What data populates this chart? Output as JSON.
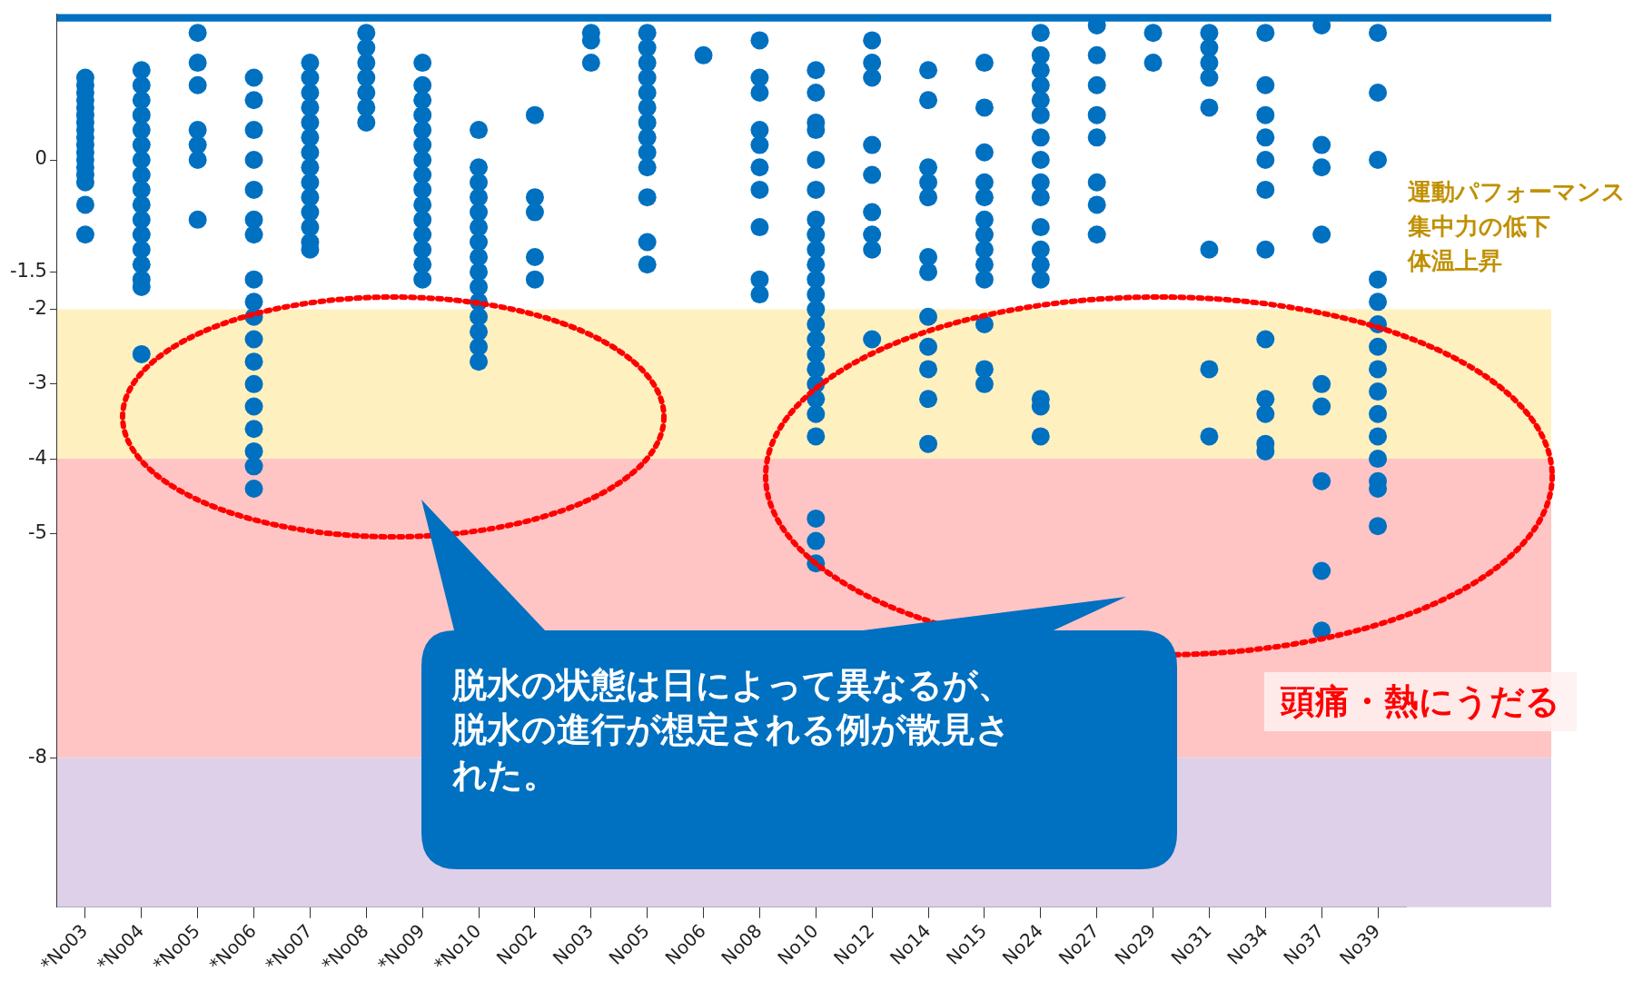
{
  "chart_data": {
    "type": "scatter",
    "categories": [
      "*No03",
      "*No04",
      "*No05",
      "*No06",
      "*No07",
      "*No08",
      "*No09",
      "*No10",
      "No02",
      "No03",
      "No05",
      "No06",
      "No08",
      "No10",
      "No12",
      "No14",
      "No15",
      "No24",
      "No27",
      "No29",
      "No31",
      "No34",
      "No37",
      "No39"
    ],
    "series": [
      {
        "color": "#0070c0",
        "x": [
          "*No03",
          "*No03",
          "*No03",
          "*No03",
          "*No03",
          "*No03",
          "*No03",
          "*No03",
          "*No03",
          "*No03",
          "*No03",
          "*No03",
          "*No03",
          "*No03",
          "*No03",
          "*No03",
          "*No03",
          "*No04",
          "*No04",
          "*No04",
          "*No04",
          "*No04",
          "*No04",
          "*No04",
          "*No04",
          "*No04",
          "*No04",
          "*No04",
          "*No04",
          "*No04",
          "*No04",
          "*No04",
          "*No04",
          "*No04",
          "*No05",
          "*No05",
          "*No05",
          "*No05",
          "*No05",
          "*No05",
          "*No05",
          "*No06",
          "*No06",
          "*No06",
          "*No06",
          "*No06",
          "*No06",
          "*No06",
          "*No06",
          "*No06",
          "*No06",
          "*No06",
          "*No06",
          "*No06",
          "*No06",
          "*No06",
          "*No06",
          "*No06",
          "*No06",
          "*No07",
          "*No07",
          "*No07",
          "*No07",
          "*No07",
          "*No07",
          "*No07",
          "*No07",
          "*No07",
          "*No07",
          "*No07",
          "*No07",
          "*No07",
          "*No07",
          "*No08",
          "*No08",
          "*No08",
          "*No08",
          "*No08",
          "*No08",
          "*No08",
          "*No09",
          "*No09",
          "*No09",
          "*No09",
          "*No09",
          "*No09",
          "*No09",
          "*No09",
          "*No09",
          "*No09",
          "*No09",
          "*No09",
          "*No09",
          "*No09",
          "*No09",
          "*No10",
          "*No10",
          "*No10",
          "*No10",
          "*No10",
          "*No10",
          "*No10",
          "*No10",
          "*No10",
          "*No10",
          "*No10",
          "*No10",
          "*No10",
          "*No10",
          "*No10",
          "No02",
          "No02",
          "No02",
          "No02",
          "No02",
          "No03",
          "No03",
          "No03",
          "No05",
          "No05",
          "No05",
          "No05",
          "No05",
          "No05",
          "No05",
          "No05",
          "No05",
          "No05",
          "No05",
          "No05",
          "No05",
          "No06",
          "No08",
          "No08",
          "No08",
          "No08",
          "No08",
          "No08",
          "No08",
          "No08",
          "No08",
          "No08",
          "No10",
          "No10",
          "No10",
          "No10",
          "No10",
          "No10",
          "No10",
          "No10",
          "No10",
          "No10",
          "No10",
          "No10",
          "No10",
          "No10",
          "No10",
          "No10",
          "No10",
          "No10",
          "No10",
          "No10",
          "No10",
          "No10",
          "No10",
          "No10",
          "No12",
          "No12",
          "No12",
          "No12",
          "No12",
          "No12",
          "No12",
          "No12",
          "No12",
          "No14",
          "No14",
          "No14",
          "No14",
          "No14",
          "No14",
          "No14",
          "No14",
          "No14",
          "No14",
          "No14",
          "No14",
          "No15",
          "No15",
          "No15",
          "No15",
          "No15",
          "No15",
          "No15",
          "No15",
          "No15",
          "No15",
          "No15",
          "No15",
          "No15",
          "No24",
          "No24",
          "No24",
          "No24",
          "No24",
          "No24",
          "No24",
          "No24",
          "No24",
          "No24",
          "No24",
          "No24",
          "No24",
          "No24",
          "No24",
          "No24",
          "No24",
          "No27",
          "No27",
          "No27",
          "No27",
          "No27",
          "No27",
          "No27",
          "No27",
          "No29",
          "No29",
          "No31",
          "No31",
          "No31",
          "No31",
          "No31",
          "No31",
          "No31",
          "No31",
          "No34",
          "No34",
          "No34",
          "No34",
          "No34",
          "No34",
          "No34",
          "No34",
          "No34",
          "No34",
          "No34",
          "No34",
          "No37",
          "No37",
          "No37",
          "No37",
          "No37",
          "No37",
          "No37",
          "No37",
          "No37",
          "No39",
          "No39",
          "No39",
          "No39",
          "No39",
          "No39",
          "No39",
          "No39",
          "No39",
          "No39",
          "No39",
          "No39",
          "No39",
          "No39",
          "No39"
        ],
        "values": [
          1.1,
          1.0,
          0.9,
          0.8,
          0.7,
          0.6,
          0.5,
          0.4,
          0.3,
          0.2,
          0.1,
          0,
          -0.1,
          -0.2,
          -0.3,
          -0.6,
          -1.0,
          1.2,
          1.0,
          0.8,
          0.6,
          0.4,
          0.2,
          0,
          -0.2,
          -0.4,
          -0.6,
          -0.8,
          -1.0,
          -1.2,
          -1.4,
          -1.6,
          -1.7,
          -2.6,
          1.7,
          1.3,
          1.0,
          0.4,
          0.2,
          0.0,
          -0.8,
          1.1,
          0.8,
          0.4,
          0,
          -0.4,
          -0.8,
          -1.0,
          -1.6,
          -1.9,
          -2.1,
          -2.4,
          -2.7,
          -3.0,
          -3.3,
          -3.6,
          -3.9,
          -4.1,
          -4.4,
          1.3,
          1.1,
          0.9,
          0.7,
          0.5,
          0.3,
          0.1,
          -0.1,
          -0.3,
          -0.5,
          -0.7,
          -0.9,
          -1.1,
          -1.2,
          1.7,
          1.5,
          1.3,
          1.1,
          0.9,
          0.7,
          0.5,
          1.3,
          1.0,
          0.8,
          0.6,
          0.4,
          0.2,
          0,
          -0.2,
          -0.4,
          -0.6,
          -0.8,
          -1.0,
          -1.2,
          -1.4,
          -1.6,
          0.4,
          -0.1,
          -0.3,
          -0.5,
          -0.7,
          -0.9,
          -1.1,
          -1.3,
          -1.5,
          -1.7,
          -1.9,
          -2.1,
          -2.3,
          -2.5,
          -2.7,
          0.6,
          -0.5,
          -0.7,
          -1.3,
          -1.6,
          1.7,
          1.6,
          1.3,
          1.7,
          1.5,
          1.3,
          1.1,
          0.9,
          0.7,
          0.5,
          0.3,
          0.1,
          -0.1,
          -0.5,
          -1.1,
          -1.4,
          1.4,
          1.6,
          1.1,
          0.9,
          0.4,
          0.2,
          -0.1,
          -0.4,
          -0.9,
          -1.6,
          -1.8,
          1.2,
          0.9,
          0.5,
          0.4,
          0,
          -0.4,
          -0.8,
          -1.0,
          -1.2,
          -1.4,
          -1.6,
          -1.8,
          -2.0,
          -2.2,
          -2.4,
          -2.6,
          -2.8,
          -3.0,
          -3.2,
          -3.4,
          -3.7,
          -4.8,
          -5.1,
          -5.4,
          1.6,
          1.3,
          1.1,
          0.2,
          -0.2,
          -0.7,
          -1.0,
          -1.2,
          -2.4,
          1.2,
          0.8,
          -0.1,
          -0.3,
          -0.5,
          -1.3,
          -1.5,
          -2.1,
          -2.5,
          -2.8,
          -3.2,
          -3.8,
          1.3,
          0.7,
          0.1,
          -0.3,
          -0.5,
          -0.8,
          -1.0,
          -1.2,
          -1.4,
          -1.6,
          -2.2,
          -2.8,
          -3.0,
          1.7,
          1.4,
          1.2,
          1.0,
          0.8,
          0.6,
          0.3,
          0.0,
          -0.3,
          -0.5,
          -0.9,
          -1.2,
          -1.4,
          -1.6,
          -3.2,
          -3.3,
          -3.7,
          1.8,
          1.4,
          1.0,
          0.6,
          0.3,
          -0.3,
          -0.6,
          -1.0,
          1.7,
          1.3,
          1.7,
          1.5,
          1.3,
          1.1,
          0.7,
          -1.2,
          -2.8,
          -3.7,
          1.7,
          1.0,
          0.6,
          0.3,
          0.0,
          -0.4,
          -1.2,
          -2.4,
          -3.2,
          -3.4,
          -3.8,
          -3.9,
          1.8,
          0.2,
          -0.1,
          -1.0,
          -3.0,
          -3.3,
          -4.3,
          -5.5,
          -6.3,
          1.7,
          0.9,
          0,
          -1.6,
          -1.9,
          -2.2,
          -2.5,
          -2.8,
          -3.1,
          -3.4,
          -3.7,
          -4.0,
          -4.3,
          -4.4,
          -4.9
        ]
      }
    ],
    "ylim": [
      -10,
      1.95
    ],
    "yticks": [
      -8,
      -5,
      -4,
      -3,
      -2,
      -1.5,
      0
    ],
    "grid": false,
    "legend": false,
    "marker": "circle",
    "bands": [
      {
        "axis": "y",
        "from": -2,
        "to": -4,
        "color": "#fff0c0"
      },
      {
        "axis": "y",
        "from": -4,
        "to": -8,
        "color": "#ffc5c5"
      },
      {
        "axis": "y",
        "from": -8,
        "to": -10,
        "color": "#ddd0e8"
      },
      {
        "axis": "y",
        "from": 1.85,
        "to": 1.95,
        "color": "#0070c0"
      }
    ],
    "annotations": [
      "脱水の状態は日によって異なるが、脱水の進行が想定される例が散見された。",
      "運動パフォーマンス",
      "集中力の低下",
      "体温上昇",
      "頭痛・熱にうだる"
    ]
  }
}
